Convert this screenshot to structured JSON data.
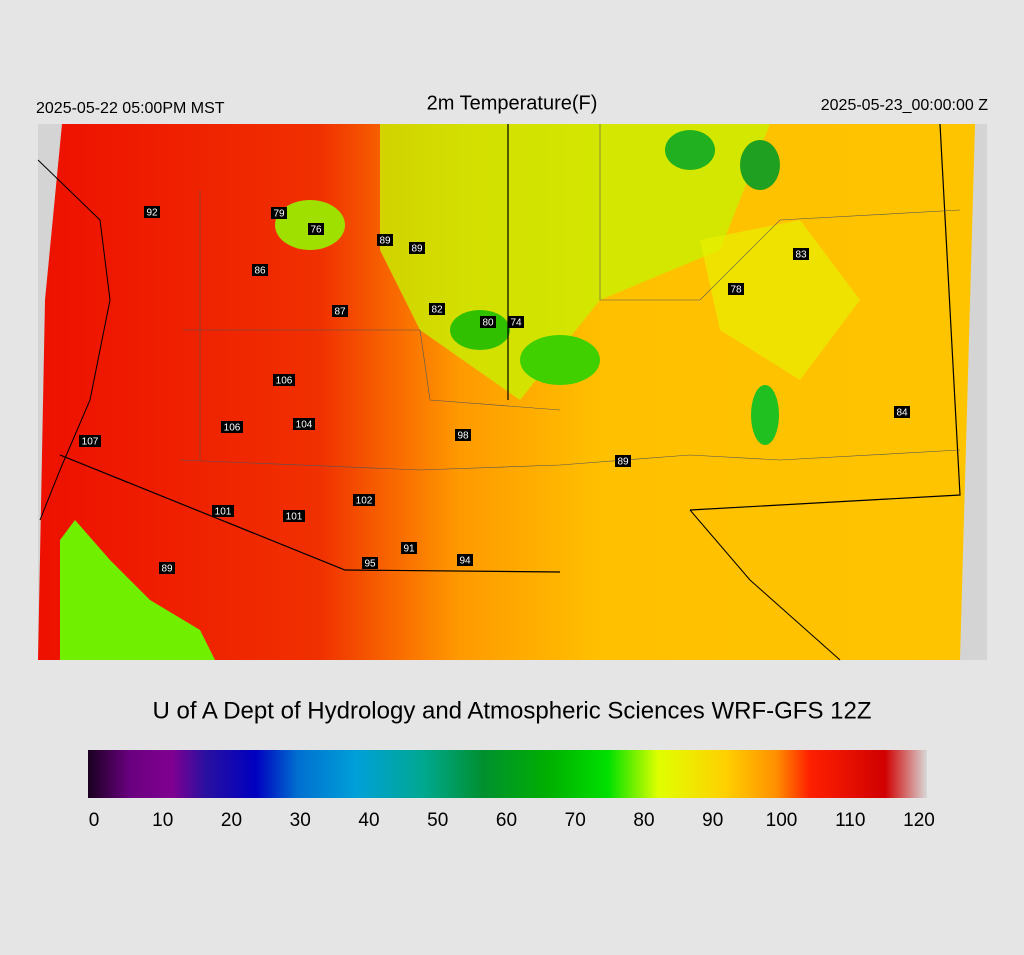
{
  "header": {
    "valid_local": "2025-05-22 05:00PM MST",
    "title": "2m Temperature(F)",
    "valid_utc": "2025-05-23_00:00:00 Z"
  },
  "stations": [
    92,
    79,
    76,
    89,
    89,
    86,
    87,
    82,
    80,
    74,
    83,
    78,
    106,
    106,
    104,
    98,
    107,
    89,
    84,
    102,
    101,
    101,
    91,
    95,
    94,
    89
  ],
  "credit": "U of A Dept of Hydrology and Atmospheric Sciences WRF-GFS 12Z",
  "colorbar": {
    "ticks": [
      0,
      10,
      20,
      30,
      40,
      50,
      60,
      70,
      80,
      90,
      100,
      110,
      120
    ],
    "range": [
      0,
      120
    ]
  }
}
